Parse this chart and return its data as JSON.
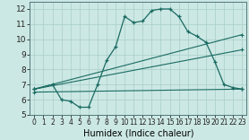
{
  "xlabel": "Humidex (Indice chaleur)",
  "xlim": [
    -0.5,
    23.5
  ],
  "ylim": [
    5,
    12.5
  ],
  "xticks": [
    0,
    1,
    2,
    3,
    4,
    5,
    6,
    7,
    8,
    9,
    10,
    11,
    12,
    13,
    14,
    15,
    16,
    17,
    18,
    19,
    20,
    21,
    22,
    23
  ],
  "yticks": [
    5,
    6,
    7,
    8,
    9,
    10,
    11,
    12
  ],
  "background_color": "#cce8e4",
  "line_color": "#1a6b62",
  "line1_x": [
    0,
    2,
    3,
    4,
    5,
    6,
    7,
    8,
    9,
    10,
    11,
    12,
    13,
    14,
    15,
    16,
    17,
    18,
    19,
    20,
    21,
    22,
    23
  ],
  "line1_y": [
    6.7,
    7.0,
    6.0,
    5.9,
    5.5,
    5.5,
    7.0,
    8.6,
    9.5,
    11.5,
    11.1,
    11.2,
    11.9,
    12.0,
    12.0,
    11.5,
    10.5,
    10.2,
    9.8,
    8.5,
    7.0,
    6.8,
    6.7
  ],
  "line2_x": [
    0,
    23
  ],
  "line2_y": [
    6.7,
    9.3
  ],
  "line3_x": [
    0,
    23
  ],
  "line3_y": [
    6.7,
    10.3
  ],
  "line4_x": [
    0,
    23
  ],
  "line4_y": [
    6.5,
    6.7
  ]
}
